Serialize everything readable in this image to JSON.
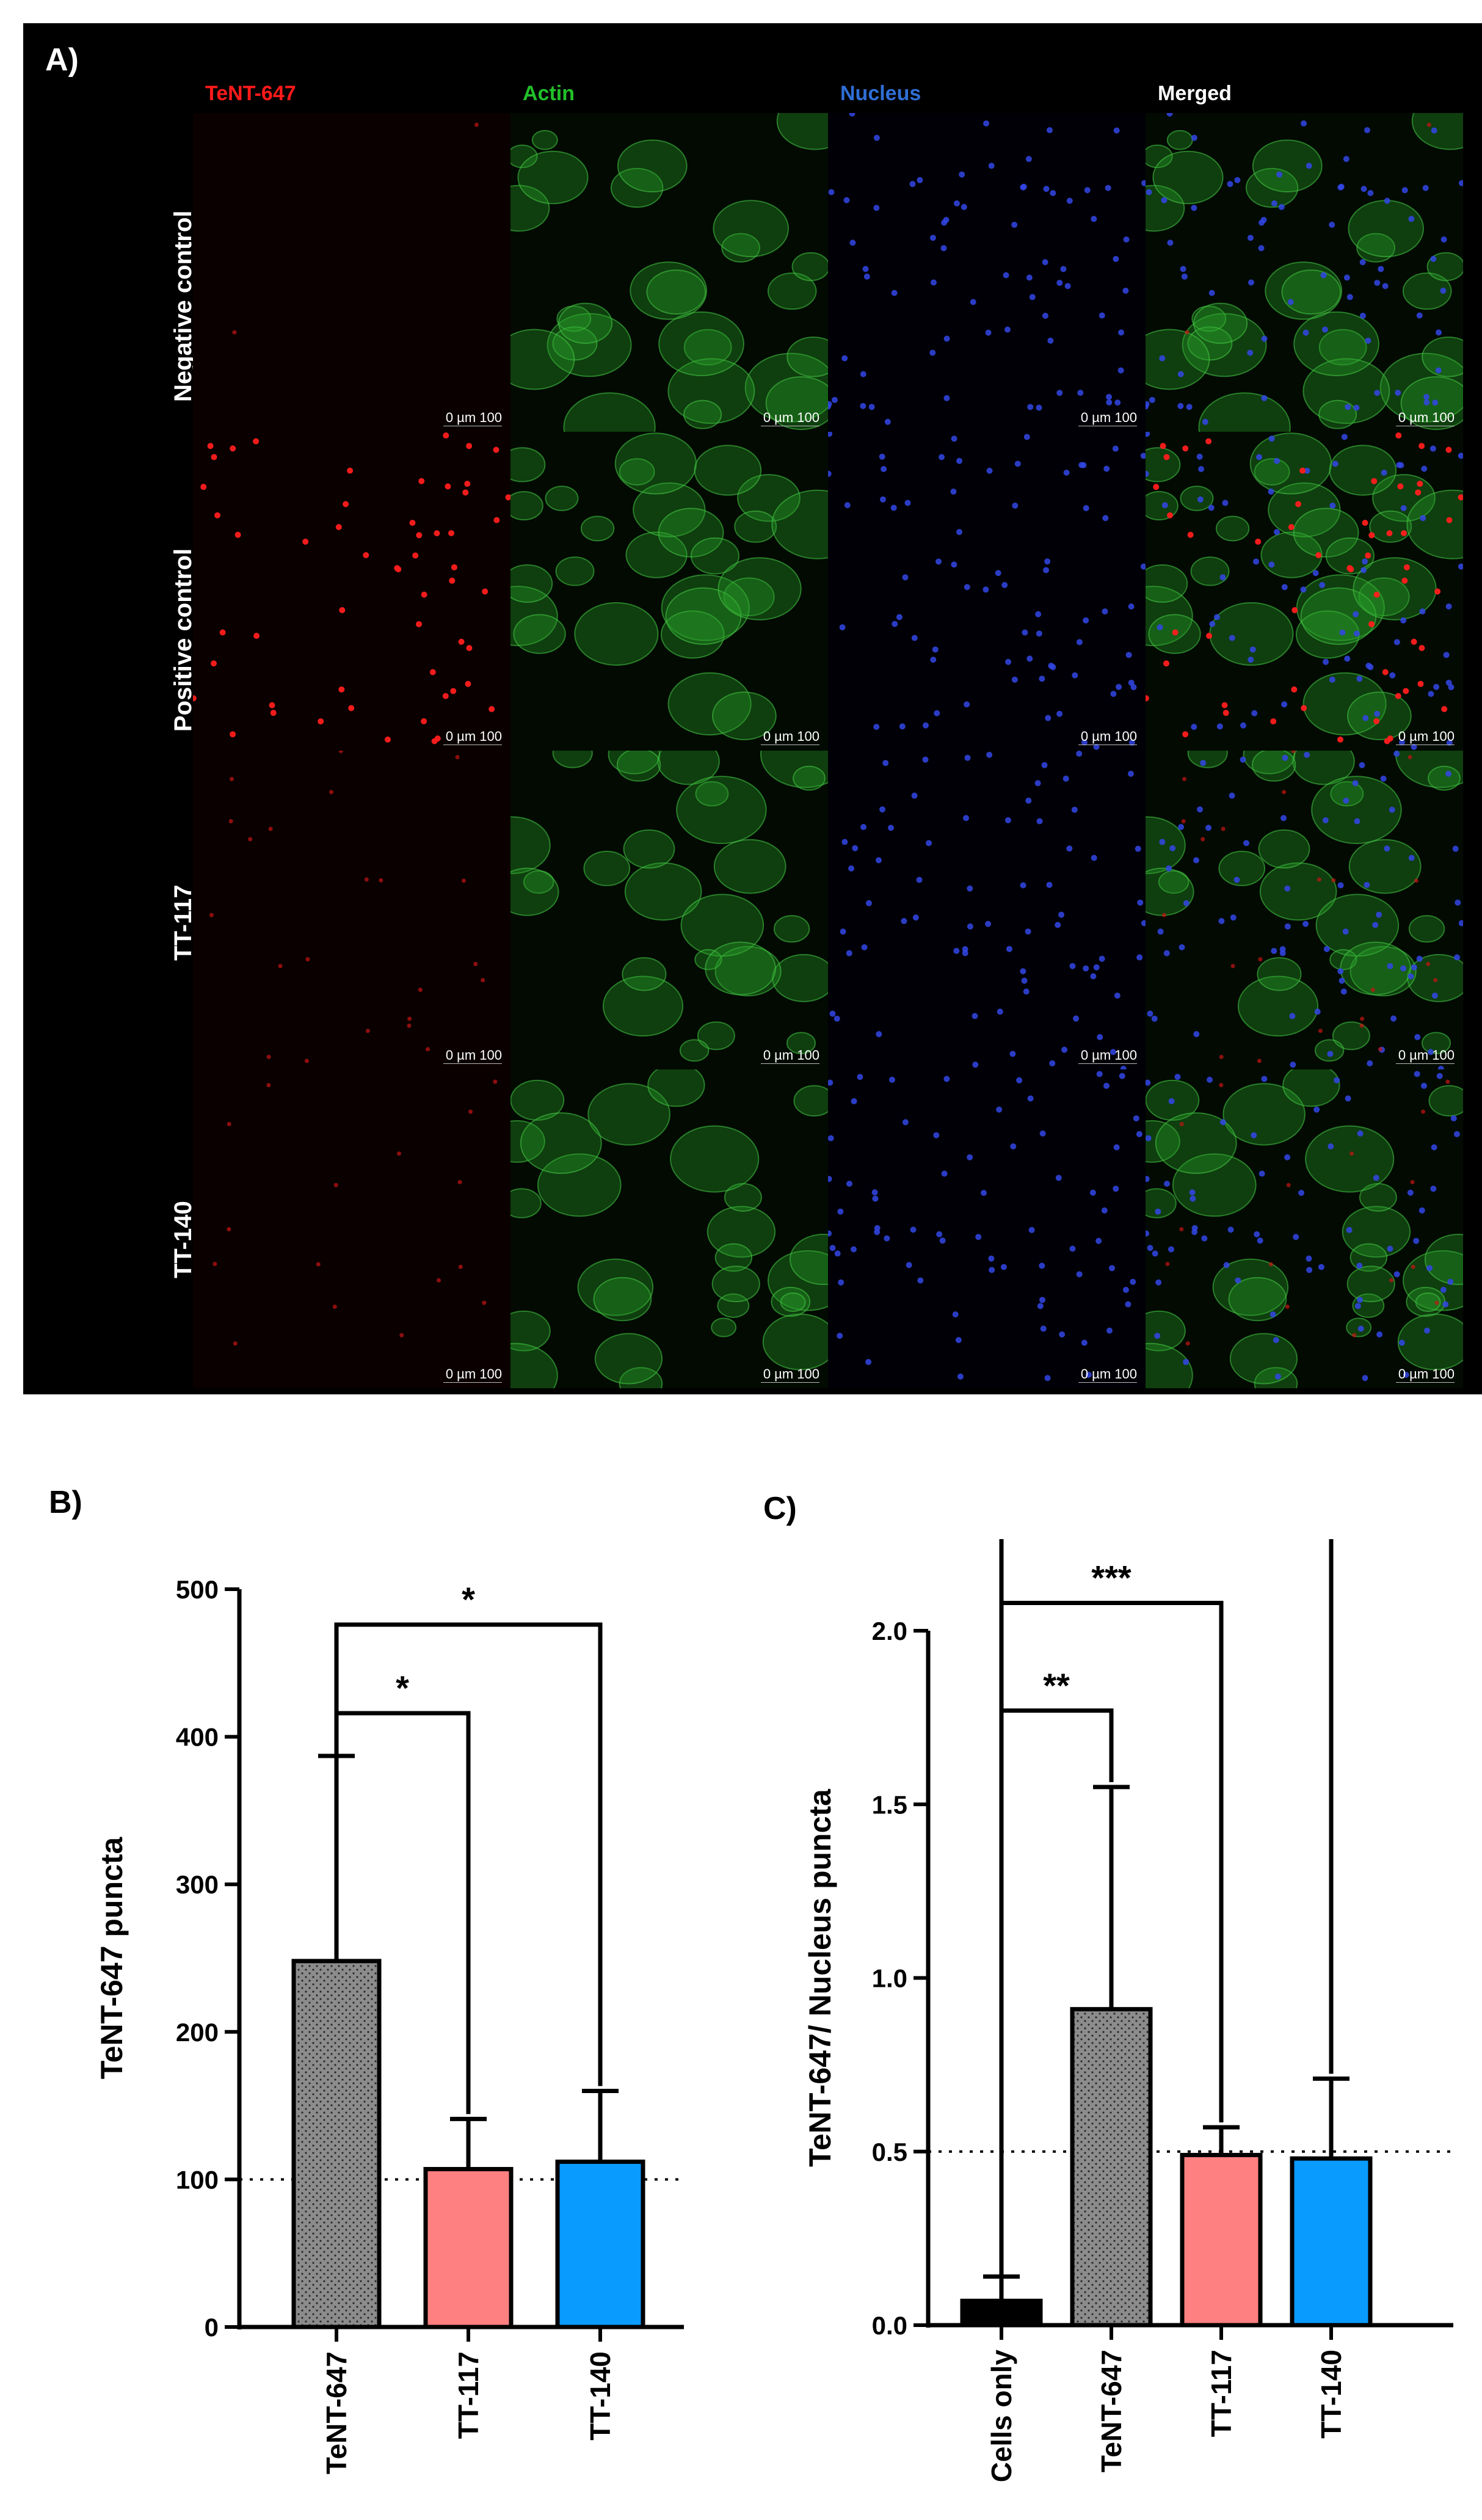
{
  "panel_a": {
    "label": "A)",
    "columns": [
      {
        "label": "TeNT-647",
        "color": "#ff1a1a"
      },
      {
        "label": "Actin",
        "color": "#22c02a"
      },
      {
        "label": "Nucleus",
        "color": "#2f6fd6"
      },
      {
        "label": "Merged",
        "color": "#ffffff"
      }
    ],
    "rows": [
      "Negative control",
      "Positive control",
      "TT-117",
      "TT-140"
    ],
    "scale_label": "0 µm 100"
  },
  "chart_data": [
    {
      "type": "bar",
      "panel_label": "B)",
      "categories": [
        "TeNT-647",
        "TT-117",
        "TT-140"
      ],
      "values": [
        248,
        107,
        112
      ],
      "errors": [
        139,
        34,
        48
      ],
      "colors": [
        "#8c8c8c",
        "#ff8080",
        "#0a9bff"
      ],
      "patterned": [
        true,
        false,
        false
      ],
      "ylabel": "TeNT-647 puncta",
      "ylim": [
        0,
        500
      ],
      "yticks": [
        0,
        100,
        200,
        300,
        400,
        500
      ],
      "reference_line": 100,
      "comparisons": [
        {
          "from": 0,
          "to": 1,
          "label": "*",
          "y": 416
        },
        {
          "from": 0,
          "to": 2,
          "label": "*",
          "y": 476
        }
      ]
    },
    {
      "type": "bar",
      "panel_label": "C)",
      "categories": [
        "Cells only",
        "TeNT-647",
        "TT-117",
        "TT-140"
      ],
      "values": [
        0.07,
        0.91,
        0.49,
        0.48
      ],
      "errors": [
        0.07,
        0.64,
        0.08,
        0.23
      ],
      "colors": [
        "#000000",
        "#8c8c8c",
        "#ff8080",
        "#0a9bff"
      ],
      "patterned": [
        false,
        true,
        false,
        false
      ],
      "ylabel": "TeNT-647/ Nucleus puncta",
      "ylim": [
        0,
        2.0
      ],
      "yticks": [
        "0.0",
        "0.5",
        "1.0",
        "1.5",
        "2.0"
      ],
      "reference_line": 0.5,
      "comparisons": [
        {
          "from": 0,
          "to": 1,
          "label": "**",
          "y": 1.77
        },
        {
          "from": 0,
          "to": 2,
          "label": "***",
          "y": 2.08
        },
        {
          "from": 0,
          "to": 3,
          "label": "**",
          "y": 2.3
        }
      ]
    }
  ]
}
